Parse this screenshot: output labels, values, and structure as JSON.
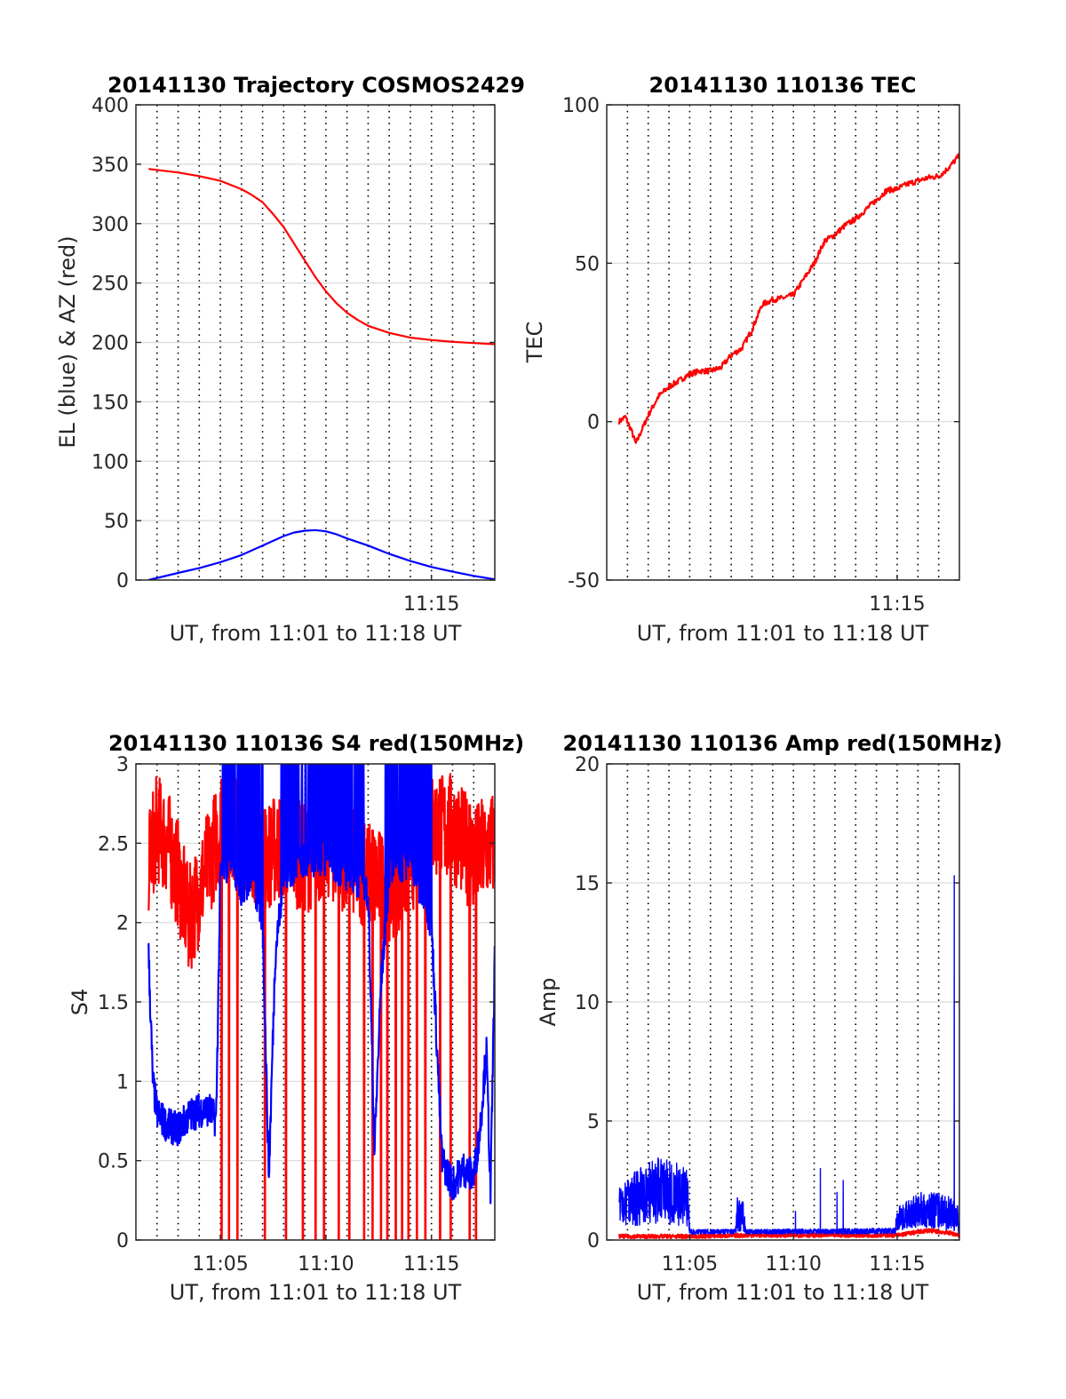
{
  "figure_title": "",
  "colors": {
    "red": "#ff0000",
    "blue": "#0000ff",
    "axis": "#262626",
    "grid": "#d9d9d9"
  },
  "chart_data": [
    {
      "id": "trajectory",
      "type": "line",
      "title": "20141130 Trajectory COSMOS2429",
      "xlabel": "UT, from 11:01 to 11:18 UT",
      "ylabel": "EL (blue) & AZ (red)",
      "x_unit": "minutes since 11:00 UT",
      "xlim": [
        1.0,
        18.0
      ],
      "ylim": [
        0,
        400
      ],
      "yticks": [
        0,
        50,
        100,
        150,
        200,
        250,
        300,
        350,
        400
      ],
      "xtick_labels": [
        {
          "x": 15,
          "label": "11:15"
        }
      ],
      "vgrid_x": [
        2,
        3,
        4,
        5,
        6,
        7,
        8,
        9,
        10,
        11,
        12,
        13,
        14,
        15,
        16,
        17
      ],
      "hgrid": true,
      "series": [
        {
          "color": "#ff0000",
          "x": [
            1.6,
            3,
            4,
            5,
            6,
            6.5,
            7,
            7.5,
            8,
            8.5,
            9,
            9.5,
            10,
            10.5,
            11,
            11.5,
            12,
            13,
            14,
            15,
            16,
            17,
            18
          ],
          "y": [
            346,
            343,
            340,
            336,
            329,
            324,
            318,
            308,
            297,
            283,
            269,
            255,
            243,
            233,
            225,
            219,
            214,
            208,
            204,
            202,
            200.5,
            199.5,
            198.5
          ]
        },
        {
          "color": "#0000ff",
          "x": [
            1.6,
            3,
            4,
            5,
            6,
            7,
            7.5,
            8,
            8.5,
            9,
            9.5,
            10,
            10.5,
            11,
            12,
            13,
            14,
            15,
            16,
            17,
            18
          ],
          "y": [
            0,
            6,
            10,
            15,
            21,
            29,
            33,
            37,
            40,
            41.5,
            42,
            41,
            38.5,
            35,
            29,
            22,
            16,
            11,
            7,
            3.5,
            0.5
          ]
        }
      ]
    },
    {
      "id": "tec",
      "type": "line",
      "title": "20141130 110136 TEC",
      "xlabel": "UT, from 11:01 to 11:18 UT",
      "ylabel": "TEC",
      "x_unit": "minutes since 11:00 UT",
      "xlim": [
        1.0,
        18.0
      ],
      "ylim": [
        -50,
        100
      ],
      "yticks": [
        -50,
        0,
        50,
        100
      ],
      "xtick_labels": [
        {
          "x": 15,
          "label": "11:15"
        }
      ],
      "vgrid_x": [
        2,
        3,
        4,
        5,
        6,
        7,
        8,
        9,
        10,
        11,
        12,
        13,
        14,
        15,
        16,
        17
      ],
      "hgrid": true,
      "series": [
        {
          "color": "#ff0000",
          "noise": 0.9,
          "x": [
            1.6,
            1.9,
            2.2,
            2.4,
            2.6,
            3.0,
            3.5,
            4.0,
            4.5,
            5.0,
            5.5,
            6.0,
            6.5,
            7.0,
            7.5,
            8.0,
            8.5,
            9.0,
            9.5,
            10.0,
            10.5,
            11.0,
            11.5,
            12.0,
            12.5,
            13.0,
            13.5,
            14.0,
            14.5,
            15.0,
            15.5,
            16.0,
            16.5,
            17.0,
            17.3,
            17.6,
            18.0
          ],
          "y": [
            0,
            1.5,
            -3,
            -7,
            -4,
            2,
            8,
            11,
            13,
            15,
            16,
            16,
            17,
            21,
            23,
            29,
            37,
            38.5,
            39,
            40,
            45,
            50,
            57,
            59,
            62,
            64,
            67,
            70,
            73,
            73.5,
            75,
            76,
            77,
            77.5,
            79,
            81,
            84
          ]
        }
      ]
    },
    {
      "id": "s4",
      "type": "line",
      "title": "20141130 110136 S4 red(150MHz)",
      "xlabel": "UT, from 11:01 to 11:18 UT",
      "ylabel": "S4",
      "x_unit": "minutes since 11:00 UT",
      "xlim": [
        1.0,
        18.0
      ],
      "ylim": [
        0,
        3
      ],
      "yticks": [
        0,
        0.5,
        1,
        1.5,
        2,
        2.5,
        3
      ],
      "xtick_labels": [
        {
          "x": 5,
          "label": "11:05"
        },
        {
          "x": 10,
          "label": "11:10"
        },
        {
          "x": 15,
          "label": "11:15"
        }
      ],
      "vgrid_x": [
        2,
        3,
        4,
        5,
        6,
        7,
        8,
        9,
        10,
        11,
        12,
        13,
        14,
        15,
        16,
        17
      ],
      "hgrid": true,
      "series": [
        {
          "color": "#ff0000",
          "noise": 0.35,
          "x": [
            1.6,
            2.0,
            2.5,
            3.0,
            3.5,
            4.0,
            4.5,
            5.0,
            6.0,
            7.0,
            8.0,
            9.0,
            10.0,
            11.0,
            12.0,
            13.0,
            14.0,
            15.0,
            16.0,
            17.0,
            18.0
          ],
          "y": [
            2.4,
            2.6,
            2.5,
            2.3,
            2.0,
            2.2,
            2.4,
            2.6,
            2.6,
            2.4,
            2.5,
            2.4,
            2.5,
            2.4,
            2.3,
            2.2,
            2.4,
            2.6,
            2.6,
            2.4,
            2.5
          ],
          "drops_to_zero_x": [
            5.05,
            5.4,
            5.8,
            7.1,
            8.1,
            8.9,
            9.5,
            9.9,
            10.6,
            11.1,
            11.8,
            12.2,
            12.6,
            12.9,
            13.3,
            13.6,
            13.9,
            14.3,
            14.7,
            15.4,
            15.9,
            16.8,
            17.1
          ]
        },
        {
          "color": "#0000ff",
          "noise": 0.11,
          "x": [
            1.6,
            1.8,
            2.0,
            2.5,
            3.0,
            3.5,
            4.0,
            4.5,
            4.8,
            5.0,
            5.5,
            6.0,
            6.5,
            7.0,
            7.3,
            7.6,
            8.0,
            9.0,
            10.0,
            11.0,
            12.0,
            12.3,
            12.6,
            13.0,
            14.0,
            15.0,
            15.5,
            16.0,
            16.5,
            17.0,
            17.3,
            17.6,
            17.8,
            18.0
          ],
          "y": [
            1.8,
            1.0,
            0.8,
            0.72,
            0.7,
            0.78,
            0.82,
            0.82,
            0.75,
            2.3,
            2.4,
            2.2,
            2.3,
            2.0,
            0.4,
            1.8,
            2.3,
            2.4,
            2.4,
            2.3,
            2.2,
            0.55,
            1.6,
            2.3,
            2.4,
            2.0,
            0.5,
            0.35,
            0.45,
            0.4,
            0.7,
            1.2,
            0.3,
            1.8
          ],
          "clip_to_max_windows": [
            [
              5.1,
              7.0
            ],
            [
              7.8,
              11.8
            ],
            [
              12.8,
              15.0
            ]
          ]
        }
      ]
    },
    {
      "id": "amp",
      "type": "line",
      "title": "20141130 110136 Amp red(150MHz)",
      "xlabel": "UT, from 11:01 to 11:18 UT",
      "ylabel": "Amp",
      "x_unit": "minutes since 11:00 UT",
      "xlim": [
        1.0,
        18.0
      ],
      "ylim": [
        0,
        20
      ],
      "yticks": [
        0,
        5,
        10,
        15,
        20
      ],
      "xtick_labels": [
        {
          "x": 5,
          "label": "11:05"
        },
        {
          "x": 10,
          "label": "11:10"
        },
        {
          "x": 15,
          "label": "11:15"
        }
      ],
      "vgrid_x": [
        2,
        3,
        4,
        5,
        6,
        7,
        8,
        9,
        10,
        11,
        12,
        13,
        14,
        15,
        16,
        17
      ],
      "hgrid": true,
      "series": [
        {
          "color": "#ff0000",
          "noise": 0.08,
          "x": [
            1.6,
            5.0,
            8.0,
            12.0,
            15.0,
            16.5,
            17.5,
            18.0
          ],
          "y": [
            0.15,
            0.15,
            0.2,
            0.2,
            0.2,
            0.4,
            0.3,
            0.2
          ]
        },
        {
          "color": "#0000ff",
          "envelope": [
            {
              "x": 1.6,
              "low": 0.6,
              "high": 2.2
            },
            {
              "x": 2.5,
              "low": 0.6,
              "high": 3.0
            },
            {
              "x": 3.5,
              "low": 0.7,
              "high": 3.5
            },
            {
              "x": 4.5,
              "low": 0.6,
              "high": 3.3
            },
            {
              "x": 4.9,
              "low": 0.5,
              "high": 3.0
            },
            {
              "x": 5.0,
              "low": 0.25,
              "high": 0.45
            },
            {
              "x": 7.2,
              "low": 0.25,
              "high": 0.45
            },
            {
              "x": 7.3,
              "low": 0.3,
              "high": 1.8
            },
            {
              "x": 7.6,
              "low": 0.3,
              "high": 1.6
            },
            {
              "x": 7.7,
              "low": 0.25,
              "high": 0.45
            },
            {
              "x": 14.9,
              "low": 0.25,
              "high": 0.5
            },
            {
              "x": 15.0,
              "low": 0.4,
              "high": 1.4
            },
            {
              "x": 16.0,
              "low": 0.5,
              "high": 2.0
            },
            {
              "x": 17.0,
              "low": 0.5,
              "high": 2.0
            },
            {
              "x": 17.6,
              "low": 0.4,
              "high": 1.8
            },
            {
              "x": 18.0,
              "low": 0.3,
              "high": 1.5
            }
          ],
          "spikes": [
            {
              "x": 10.1,
              "y": 1.2
            },
            {
              "x": 11.3,
              "y": 3.0
            },
            {
              "x": 12.1,
              "y": 2.0
            },
            {
              "x": 12.4,
              "y": 2.5
            },
            {
              "x": 17.75,
              "y": 15.3
            }
          ]
        }
      ]
    }
  ]
}
